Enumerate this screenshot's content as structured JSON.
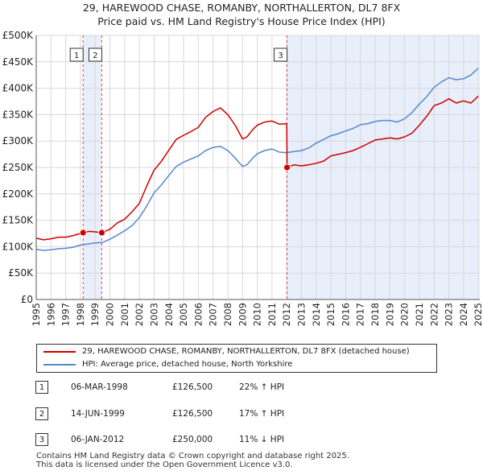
{
  "header": {
    "title_line1": "29, HAREWOOD CHASE, ROMANBY, NORTHALLERTON, DL7 8FX",
    "title_line2": "Price paid vs. HM Land Registry's House Price Index (HPI)"
  },
  "colors": {
    "property": "#cc0000",
    "hpi": "#5588cc",
    "shade": "#e8eefa",
    "vline": "#dd4444"
  },
  "chart_data": {
    "type": "line",
    "title": "Price paid vs. HM Land Registry's House Price Index (HPI)",
    "xlabel": "",
    "ylabel": "",
    "xlim": [
      1995.0,
      2025.1
    ],
    "ylim": [
      0,
      500000
    ],
    "grid": true,
    "y_ticks": [
      0,
      50000,
      100000,
      150000,
      200000,
      250000,
      300000,
      350000,
      400000,
      450000,
      500000
    ],
    "y_tick_labels": [
      "£0",
      "£50K",
      "£100K",
      "£150K",
      "£200K",
      "£250K",
      "£300K",
      "£350K",
      "£400K",
      "£450K",
      "£500K"
    ],
    "x_ticks": [
      1995,
      1996,
      1997,
      1998,
      1999,
      2000,
      2001,
      2002,
      2003,
      2004,
      2005,
      2006,
      2007,
      2008,
      2009,
      2010,
      2011,
      2012,
      2013,
      2014,
      2015,
      2016,
      2017,
      2018,
      2019,
      2020,
      2021,
      2022,
      2023,
      2024,
      2025
    ],
    "x_tick_labels": [
      "1995",
      "1996",
      "1997",
      "1998",
      "1999",
      "2000",
      "2001",
      "2002",
      "2003",
      "2004",
      "2005",
      "2006",
      "2007",
      "2008",
      "2009",
      "2010",
      "2011",
      "2012",
      "2013",
      "2014",
      "2015",
      "2016",
      "2017",
      "2018",
      "2019",
      "2020",
      "2021",
      "2022",
      "2023",
      "2024",
      "2025"
    ],
    "shaded_ranges": [
      [
        1998.18,
        1999.45
      ],
      [
        2012.02,
        2025.1
      ]
    ],
    "series": [
      {
        "name": "29, HAREWOOD CHASE, ROMANBY, NORTHALLERTON, DL7 8FX (detached house)",
        "color": "#cc0000",
        "x": [
          1995.0,
          1995.5,
          1996.0,
          1996.5,
          1997.0,
          1997.5,
          1998.18,
          1998.6,
          1999.0,
          1999.45,
          2000.0,
          2000.5,
          2001.0,
          2001.5,
          2002.0,
          2002.5,
          2003.0,
          2003.5,
          2004.0,
          2004.5,
          2005.0,
          2005.5,
          2006.0,
          2006.5,
          2007.0,
          2007.5,
          2008.0,
          2008.5,
          2009.0,
          2009.3,
          2009.7,
          2010.0,
          2010.5,
          2011.0,
          2011.5,
          2012.0,
          2012.02,
          2012.5,
          2013.0,
          2013.5,
          2014.0,
          2014.5,
          2015.0,
          2015.5,
          2016.0,
          2016.5,
          2017.0,
          2017.5,
          2018.0,
          2018.5,
          2019.0,
          2019.5,
          2020.0,
          2020.5,
          2021.0,
          2021.5,
          2022.0,
          2022.5,
          2023.0,
          2023.5,
          2024.0,
          2024.5,
          2025.0
        ],
        "y": [
          116000,
          113000,
          115000,
          118000,
          118000,
          121000,
          126500,
          129000,
          128000,
          126500,
          133000,
          145000,
          152000,
          166000,
          182000,
          215000,
          245000,
          262000,
          283000,
          303000,
          311000,
          318000,
          326000,
          345000,
          356000,
          363000,
          350000,
          330000,
          304000,
          308000,
          322000,
          330000,
          336000,
          338000,
          332000,
          333000,
          250000,
          255000,
          253000,
          255000,
          258000,
          262000,
          272000,
          275000,
          278000,
          282000,
          288000,
          295000,
          302000,
          304000,
          306000,
          304000,
          308000,
          315000,
          330000,
          347000,
          367000,
          372000,
          380000,
          372000,
          376000,
          372000,
          385000
        ]
      },
      {
        "name": "HPI: Average price, detached house, North Yorkshire",
        "color": "#5588cc",
        "x": [
          1995.0,
          1995.5,
          1996.0,
          1996.5,
          1997.0,
          1997.5,
          1998.0,
          1998.5,
          1999.0,
          1999.5,
          2000.0,
          2000.5,
          2001.0,
          2001.5,
          2002.0,
          2002.5,
          2003.0,
          2003.5,
          2004.0,
          2004.5,
          2005.0,
          2005.5,
          2006.0,
          2006.5,
          2007.0,
          2007.5,
          2008.0,
          2008.5,
          2009.0,
          2009.3,
          2009.7,
          2010.0,
          2010.5,
          2011.0,
          2011.5,
          2012.0,
          2012.5,
          2013.0,
          2013.5,
          2014.0,
          2014.5,
          2015.0,
          2015.5,
          2016.0,
          2016.5,
          2017.0,
          2017.5,
          2018.0,
          2018.5,
          2019.0,
          2019.5,
          2020.0,
          2020.5,
          2021.0,
          2021.5,
          2022.0,
          2022.5,
          2023.0,
          2023.5,
          2024.0,
          2024.5,
          2025.0
        ],
        "y": [
          95000,
          93000,
          94000,
          96000,
          97000,
          99000,
          103000,
          105000,
          107000,
          108000,
          114000,
          122000,
          130000,
          140000,
          155000,
          177000,
          202000,
          217000,
          235000,
          252000,
          260000,
          266000,
          272000,
          282000,
          288000,
          290000,
          282000,
          268000,
          252000,
          255000,
          268000,
          276000,
          282000,
          285000,
          279000,
          278000,
          280000,
          282000,
          287000,
          296000,
          303000,
          310000,
          314000,
          319000,
          324000,
          331000,
          333000,
          337000,
          339000,
          339000,
          336000,
          342000,
          354000,
          370000,
          384000,
          402000,
          412000,
          420000,
          416000,
          418000,
          425000,
          438000
        ]
      }
    ],
    "sales": [
      {
        "label": "1",
        "x": 1998.18,
        "y": 126500
      },
      {
        "label": "2",
        "x": 1999.45,
        "y": 126500
      },
      {
        "label": "3",
        "x": 2012.02,
        "y": 250000
      }
    ]
  },
  "legend": {
    "property_label": "29, HAREWOOD CHASE, ROMANBY, NORTHALLERTON, DL7 8FX (detached house)",
    "hpi_label": "HPI: Average price, detached house, North Yorkshire"
  },
  "transactions": [
    {
      "num": "1",
      "date": "06-MAR-1998",
      "price": "£126,500",
      "hpi": "22% ↑ HPI"
    },
    {
      "num": "2",
      "date": "14-JUN-1999",
      "price": "£126,500",
      "hpi": "17% ↑ HPI"
    },
    {
      "num": "3",
      "date": "06-JAN-2012",
      "price": "£250,000",
      "hpi": "11% ↓ HPI"
    }
  ],
  "footer": {
    "line1": "Contains HM Land Registry data © Crown copyright and database right 2025.",
    "line2": "This data is licensed under the Open Government Licence v3.0."
  }
}
